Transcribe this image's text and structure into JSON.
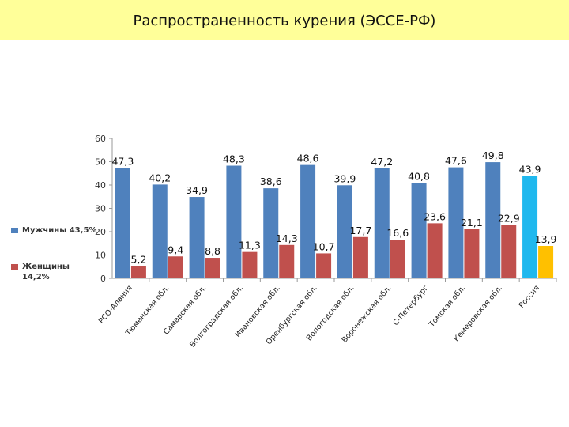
{
  "page": {
    "title": "Распространенность курения (ЭССЕ-РФ)",
    "title_bar_color": "#ffff99"
  },
  "chart_data": {
    "type": "bar",
    "title": "",
    "xlabel": "",
    "ylabel": "",
    "ylim": [
      0,
      60
    ],
    "yticks": [
      "0",
      "10",
      "20",
      "30",
      "40",
      "50",
      "60"
    ],
    "grid": false,
    "legend_position": "left",
    "categories": [
      "РСО-Алания",
      "Тюменская обл.",
      "Самарская обл.",
      "Волгоградская обл.",
      "Ивановская обл.",
      "Оренбургская обл.",
      "Вологодская обл.",
      "Воронежская обл.",
      "С-Петербург",
      "Томская обл.",
      "Кемеровская обл.",
      "Россия"
    ],
    "series": [
      {
        "name": "Мужчины 43,5%",
        "legend_label_line1": "Мужчины 43,5%",
        "color": "#4f81bd",
        "highlight_color": "#1fb8ee",
        "values": [
          47.3,
          40.2,
          34.9,
          48.3,
          38.6,
          48.6,
          39.9,
          47.2,
          40.8,
          47.6,
          49.8,
          43.9
        ],
        "labels": [
          "47,3",
          "40,2",
          "34,9",
          "48,3",
          "38,6",
          "48,6",
          "39,9",
          "47,2",
          "40,8",
          "47,6",
          "49,8",
          "43,9"
        ]
      },
      {
        "name": "Женщины 14,2%",
        "legend_label_line1": "Женщины",
        "legend_label_line2": "14,2%",
        "color": "#c0504d",
        "highlight_color": "#ffc000",
        "values": [
          5.2,
          9.4,
          8.8,
          11.3,
          14.3,
          10.7,
          17.7,
          16.6,
          23.6,
          21.1,
          22.9,
          13.9
        ],
        "labels": [
          "5,2",
          "9,4",
          "8,8",
          "11,3",
          "14,3",
          "10,7",
          "17,7",
          "16,6",
          "23,6",
          "21,1",
          "22,9",
          "13,9"
        ]
      }
    ],
    "highlight_category": "Россия"
  }
}
